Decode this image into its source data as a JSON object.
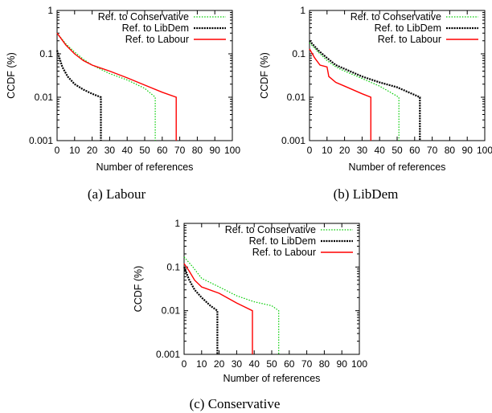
{
  "chart_data": [
    {
      "type": "line",
      "caption": "(a)  Labour",
      "xlabel": "Number of references",
      "ylabel": "CCDF (%)",
      "xlim": [
        0,
        100
      ],
      "ylim": [
        0.001,
        1
      ],
      "yscale": "log",
      "xticks": [
        "0",
        "10",
        "20",
        "30",
        "40",
        "50",
        "60",
        "70",
        "80",
        "90",
        "100"
      ],
      "yticks": [
        "1",
        "0.1",
        "0.01",
        "0.001"
      ],
      "legend_position": "top-right",
      "series": [
        {
          "name": "Ref. to Conservative",
          "color": "#00cc00",
          "dash": "dotted",
          "x": [
            0,
            5,
            10,
            15,
            20,
            30,
            40,
            50,
            56,
            56
          ],
          "y": [
            0.3,
            0.17,
            0.11,
            0.075,
            0.055,
            0.035,
            0.025,
            0.016,
            0.01,
            0.001
          ]
        },
        {
          "name": "Ref. to LibDem",
          "color": "#000000",
          "dash": "densedot",
          "x": [
            0,
            3,
            6,
            10,
            15,
            20,
            25,
            25
          ],
          "y": [
            0.12,
            0.05,
            0.03,
            0.02,
            0.015,
            0.012,
            0.01,
            0.001
          ]
        },
        {
          "name": "Ref. to Labour",
          "color": "#ff0000",
          "dash": "solid",
          "x": [
            0,
            5,
            10,
            15,
            20,
            30,
            40,
            50,
            60,
            68,
            68
          ],
          "y": [
            0.3,
            0.16,
            0.1,
            0.07,
            0.055,
            0.04,
            0.028,
            0.019,
            0.013,
            0.01,
            0.001
          ]
        }
      ]
    },
    {
      "type": "line",
      "caption": "(b)  LibDem",
      "xlabel": "Number of references",
      "ylabel": "CCDF (%)",
      "xlim": [
        0,
        100
      ],
      "ylim": [
        0.001,
        1
      ],
      "yscale": "log",
      "xticks": [
        "0",
        "10",
        "20",
        "30",
        "40",
        "50",
        "60",
        "70",
        "80",
        "90",
        "100"
      ],
      "yticks": [
        "1",
        "0.1",
        "0.01",
        "0.001"
      ],
      "legend_position": "top-right",
      "series": [
        {
          "name": "Ref. to Conservative",
          "color": "#00cc00",
          "dash": "dotted",
          "x": [
            0,
            5,
            10,
            15,
            20,
            30,
            40,
            51,
            51
          ],
          "y": [
            0.18,
            0.11,
            0.07,
            0.05,
            0.04,
            0.027,
            0.018,
            0.01,
            0.001
          ]
        },
        {
          "name": "Ref. to LibDem",
          "color": "#000000",
          "dash": "densedot",
          "x": [
            0,
            5,
            10,
            15,
            20,
            30,
            40,
            50,
            63,
            63
          ],
          "y": [
            0.2,
            0.12,
            0.08,
            0.055,
            0.045,
            0.03,
            0.022,
            0.017,
            0.01,
            0.001
          ]
        },
        {
          "name": "Ref. to Labour",
          "color": "#ff0000",
          "dash": "solid",
          "x": [
            0,
            3,
            6,
            10,
            11,
            15,
            20,
            30,
            35,
            35
          ],
          "y": [
            0.13,
            0.08,
            0.055,
            0.05,
            0.03,
            0.022,
            0.018,
            0.012,
            0.01,
            0.001
          ]
        }
      ]
    },
    {
      "type": "line",
      "caption": "(c)  Conservative",
      "xlabel": "Number of references",
      "ylabel": "CCDF (%)",
      "xlim": [
        0,
        100
      ],
      "ylim": [
        0.001,
        1
      ],
      "yscale": "log",
      "xticks": [
        "0",
        "10",
        "20",
        "30",
        "40",
        "50",
        "60",
        "70",
        "80",
        "90",
        "100"
      ],
      "yticks": [
        "1",
        "0.1",
        "0.01",
        "0.001"
      ],
      "legend_position": "top-right",
      "series": [
        {
          "name": "Ref. to Conservative",
          "color": "#00cc00",
          "dash": "dotted",
          "x": [
            0,
            5,
            10,
            20,
            30,
            40,
            50,
            54,
            54
          ],
          "y": [
            0.17,
            0.1,
            0.055,
            0.035,
            0.022,
            0.016,
            0.013,
            0.01,
            0.001
          ]
        },
        {
          "name": "Ref. to LibDem",
          "color": "#000000",
          "dash": "densedot",
          "x": [
            0,
            3,
            6,
            10,
            15,
            19,
            19
          ],
          "y": [
            0.1,
            0.05,
            0.03,
            0.02,
            0.013,
            0.01,
            0.001
          ]
        },
        {
          "name": "Ref. to Labour",
          "color": "#ff0000",
          "dash": "solid",
          "x": [
            0,
            3,
            6,
            10,
            20,
            30,
            39,
            39
          ],
          "y": [
            0.12,
            0.08,
            0.05,
            0.035,
            0.025,
            0.015,
            0.01,
            0.001
          ]
        }
      ]
    }
  ]
}
